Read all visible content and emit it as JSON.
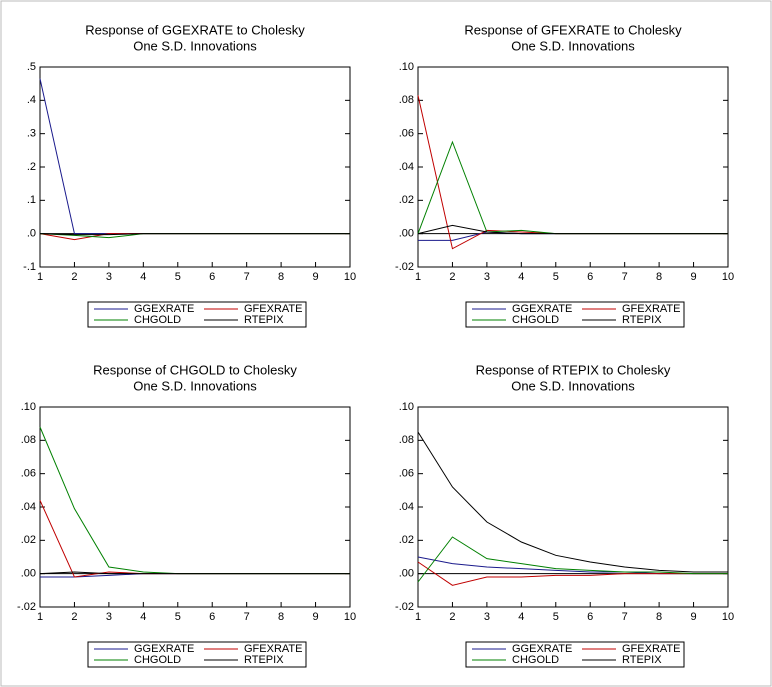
{
  "chart_data": [
    {
      "type": "line",
      "title": "Response of GGEXRATE to Cholesky",
      "subtitle": "One S.D. Innovations",
      "x": [
        1,
        2,
        3,
        4,
        5,
        6,
        7,
        8,
        9,
        10
      ],
      "xlim": [
        1,
        10
      ],
      "xticks": [
        1,
        2,
        3,
        4,
        5,
        6,
        7,
        8,
        9,
        10
      ],
      "ylim": [
        -0.1,
        0.5
      ],
      "yticks": [
        {
          "value": -0.1,
          "label": "-.1"
        },
        {
          "value": 0,
          "label": ".0"
        },
        {
          "value": 0.1,
          "label": ".1"
        },
        {
          "value": 0.2,
          "label": ".2"
        },
        {
          "value": 0.3,
          "label": ".3"
        },
        {
          "value": 0.4,
          "label": ".4"
        },
        {
          "value": 0.5,
          "label": ".5"
        }
      ],
      "series": [
        {
          "name": "GGEXRATE",
          "color": "#1a1a8c",
          "values": [
            0.465,
            0,
            0,
            0,
            0,
            0,
            0,
            0,
            0,
            0
          ]
        },
        {
          "name": "GFEXRATE",
          "color": "#c00000",
          "values": [
            0,
            -0.018,
            0,
            0,
            0,
            0,
            0,
            0,
            0,
            0
          ]
        },
        {
          "name": "CHGOLD",
          "color": "#008000",
          "values": [
            0,
            -0.005,
            -0.012,
            0,
            0,
            0,
            0,
            0,
            0,
            0
          ]
        },
        {
          "name": "RTEPIX",
          "color": "#000000",
          "values": [
            0,
            -0.003,
            -0.003,
            0,
            0,
            0,
            0,
            0,
            0,
            0
          ]
        }
      ]
    },
    {
      "type": "line",
      "title": "Response of GFEXRATE to Cholesky",
      "subtitle": "One S.D. Innovations",
      "x": [
        1,
        2,
        3,
        4,
        5,
        6,
        7,
        8,
        9,
        10
      ],
      "xlim": [
        1,
        10
      ],
      "xticks": [
        1,
        2,
        3,
        4,
        5,
        6,
        7,
        8,
        9,
        10
      ],
      "ylim": [
        -0.02,
        0.1
      ],
      "yticks": [
        {
          "value": -0.02,
          "label": "-.02"
        },
        {
          "value": 0,
          "label": ".00"
        },
        {
          "value": 0.02,
          "label": ".02"
        },
        {
          "value": 0.04,
          "label": ".04"
        },
        {
          "value": 0.06,
          "label": ".06"
        },
        {
          "value": 0.08,
          "label": ".08"
        },
        {
          "value": 0.1,
          "label": ".10"
        }
      ],
      "series": [
        {
          "name": "GGEXRATE",
          "color": "#1a1a8c",
          "values": [
            -0.004,
            -0.004,
            0.001,
            0,
            0,
            0,
            0,
            0,
            0,
            0
          ]
        },
        {
          "name": "GFEXRATE",
          "color": "#c00000",
          "values": [
            0.083,
            -0.009,
            0.002,
            0.001,
            0,
            0,
            0,
            0,
            0,
            0
          ]
        },
        {
          "name": "CHGOLD",
          "color": "#008000",
          "values": [
            0,
            0.055,
            0.001,
            0.002,
            0,
            0,
            0,
            0,
            0,
            0
          ]
        },
        {
          "name": "RTEPIX",
          "color": "#000000",
          "values": [
            0,
            0.005,
            0.001,
            0,
            0,
            0,
            0,
            0,
            0,
            0
          ]
        }
      ]
    },
    {
      "type": "line",
      "title": "Response of CHGOLD to Cholesky",
      "subtitle": "One S.D. Innovations",
      "x": [
        1,
        2,
        3,
        4,
        5,
        6,
        7,
        8,
        9,
        10
      ],
      "xlim": [
        1,
        10
      ],
      "xticks": [
        1,
        2,
        3,
        4,
        5,
        6,
        7,
        8,
        9,
        10
      ],
      "ylim": [
        -0.02,
        0.1
      ],
      "yticks": [
        {
          "value": -0.02,
          "label": "-.02"
        },
        {
          "value": 0,
          "label": ".00"
        },
        {
          "value": 0.02,
          "label": ".02"
        },
        {
          "value": 0.04,
          "label": ".04"
        },
        {
          "value": 0.06,
          "label": ".06"
        },
        {
          "value": 0.08,
          "label": ".08"
        },
        {
          "value": 0.1,
          "label": ".10"
        }
      ],
      "series": [
        {
          "name": "GGEXRATE",
          "color": "#1a1a8c",
          "values": [
            -0.002,
            -0.002,
            -0.001,
            0,
            0,
            0,
            0,
            0,
            0,
            0
          ]
        },
        {
          "name": "GFEXRATE",
          "color": "#c00000",
          "values": [
            0.044,
            -0.002,
            0.001,
            0,
            0,
            0,
            0,
            0,
            0,
            0
          ]
        },
        {
          "name": "CHGOLD",
          "color": "#008000",
          "values": [
            0.088,
            0.039,
            0.004,
            0.001,
            0,
            0,
            0,
            0,
            0,
            0
          ]
        },
        {
          "name": "RTEPIX",
          "color": "#000000",
          "values": [
            0,
            0.001,
            0,
            0,
            0,
            0,
            0,
            0,
            0,
            0
          ]
        }
      ]
    },
    {
      "type": "line",
      "title": "Response of RTEPIX to Cholesky",
      "subtitle": "One S.D. Innovations",
      "x": [
        1,
        2,
        3,
        4,
        5,
        6,
        7,
        8,
        9,
        10
      ],
      "xlim": [
        1,
        10
      ],
      "xticks": [
        1,
        2,
        3,
        4,
        5,
        6,
        7,
        8,
        9,
        10
      ],
      "ylim": [
        -0.02,
        0.1
      ],
      "yticks": [
        {
          "value": -0.02,
          "label": "-.02"
        },
        {
          "value": 0,
          "label": ".00"
        },
        {
          "value": 0.02,
          "label": ".02"
        },
        {
          "value": 0.04,
          "label": ".04"
        },
        {
          "value": 0.06,
          "label": ".06"
        },
        {
          "value": 0.08,
          "label": ".08"
        },
        {
          "value": 0.1,
          "label": ".10"
        }
      ],
      "series": [
        {
          "name": "GGEXRATE",
          "color": "#1a1a8c",
          "values": [
            0.01,
            0.006,
            0.004,
            0.003,
            0.002,
            0.001,
            0.001,
            0,
            0,
            0
          ]
        },
        {
          "name": "GFEXRATE",
          "color": "#c00000",
          "values": [
            0.007,
            -0.007,
            -0.002,
            -0.002,
            -0.001,
            -0.001,
            0,
            0,
            0,
            0
          ]
        },
        {
          "name": "CHGOLD",
          "color": "#008000",
          "values": [
            -0.005,
            0.022,
            0.009,
            0.006,
            0.003,
            0.002,
            0.001,
            0.001,
            0,
            0
          ]
        },
        {
          "name": "RTEPIX",
          "color": "#000000",
          "values": [
            0.085,
            0.052,
            0.031,
            0.019,
            0.011,
            0.007,
            0.004,
            0.002,
            0.001,
            0.001
          ]
        }
      ]
    }
  ]
}
